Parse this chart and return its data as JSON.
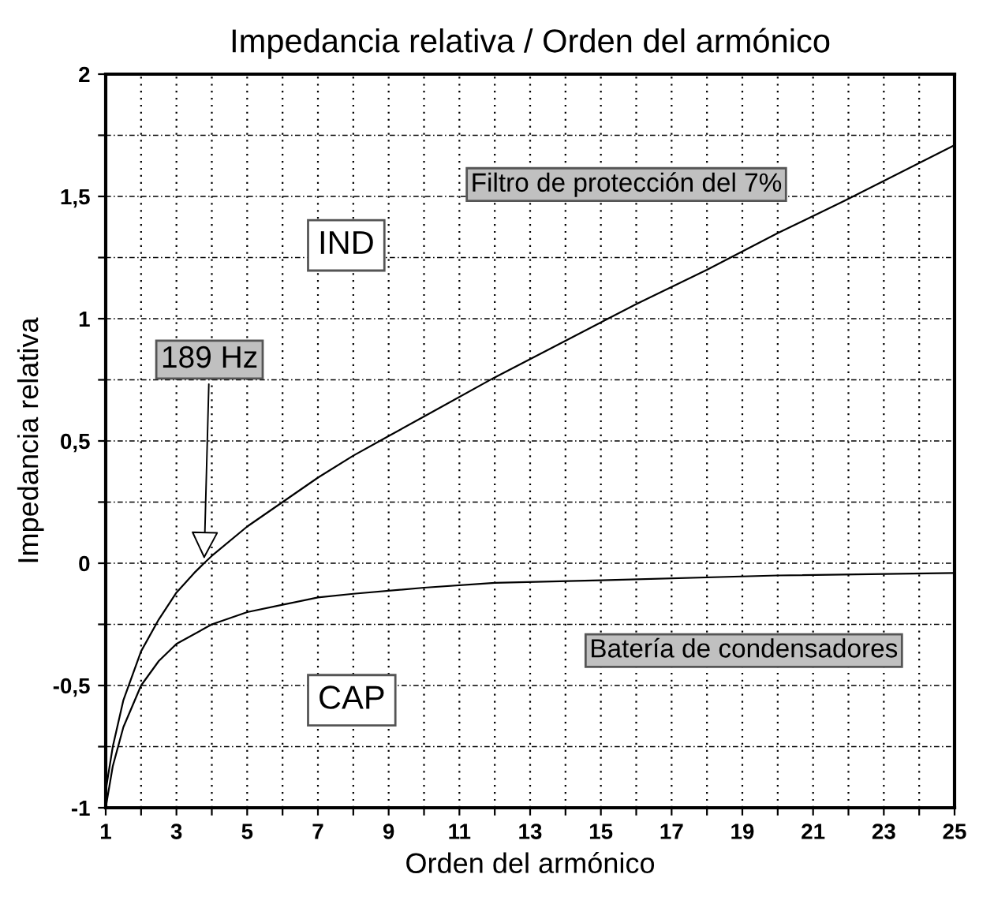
{
  "chart_data": {
    "type": "line",
    "title": "Impedancia relativa / Orden del armónico",
    "xlabel": "Orden del armónico",
    "ylabel": "Impedancia relativa",
    "series": [
      {
        "name": "Filtro de protección del 7%",
        "color": "#000000",
        "x": [
          1,
          1.2,
          1.5,
          2,
          2.5,
          3,
          3.5,
          3.78,
          4,
          5,
          6,
          7,
          8,
          9,
          10,
          12,
          14,
          16,
          18,
          20,
          22,
          25
        ],
        "values": [
          -0.93,
          -0.75,
          -0.56,
          -0.36,
          -0.23,
          -0.12,
          -0.04,
          0,
          0.03,
          0.15,
          0.25,
          0.35,
          0.44,
          0.52,
          0.6,
          0.76,
          0.91,
          1.06,
          1.2,
          1.35,
          1.49,
          1.71
        ]
      },
      {
        "name": "Batería de condensadores",
        "color": "#000000",
        "x": [
          1,
          1.2,
          1.5,
          2,
          2.5,
          3,
          4,
          5,
          6,
          7,
          8,
          10,
          12,
          15,
          20,
          25
        ],
        "values": [
          -1,
          -0.83,
          -0.67,
          -0.5,
          -0.4,
          -0.33,
          -0.25,
          -0.2,
          -0.17,
          -0.14,
          -0.125,
          -0.1,
          -0.08,
          -0.07,
          -0.05,
          -0.04
        ]
      }
    ],
    "annotations": [
      "IND",
      "CAP",
      {
        "text": "189 Hz",
        "x": 3.78,
        "y": 0
      }
    ],
    "xlim": [
      1,
      25
    ],
    "xticks": [
      1,
      {
        "value": 2,
        "label": null
      },
      3,
      {
        "value": 4,
        "label": null
      },
      5,
      {
        "value": 6,
        "label": null
      },
      7,
      {
        "value": 8,
        "label": null
      },
      9,
      {
        "value": 10,
        "label": null
      },
      11,
      {
        "value": 12,
        "label": null
      },
      13,
      {
        "value": 14,
        "label": null
      },
      15,
      {
        "value": 16,
        "label": null
      },
      17,
      {
        "value": 18,
        "label": null
      },
      19,
      {
        "value": 20,
        "label": null
      },
      21,
      {
        "value": 22,
        "label": null
      },
      23,
      {
        "value": 24,
        "label": null
      },
      25
    ],
    "ylim": [
      -1,
      2
    ],
    "yticks": [
      {
        "value": -1,
        "label": "-1"
      },
      {
        "value": -0.75,
        "label": null
      },
      {
        "value": -0.5,
        "label": "-0,5"
      },
      {
        "value": -0.25,
        "label": null
      },
      0,
      {
        "value": 0.25,
        "label": null
      },
      {
        "value": 0.5,
        "label": "0,5"
      },
      {
        "value": 0.75,
        "label": null
      },
      1,
      {
        "value": 1.25,
        "label": null
      },
      {
        "value": 1.5,
        "label": "1,5"
      },
      {
        "value": 1.75,
        "label": null
      },
      2
    ],
    "grid": true,
    "legend": false,
    "marker": "none",
    "line_style": "solid"
  }
}
